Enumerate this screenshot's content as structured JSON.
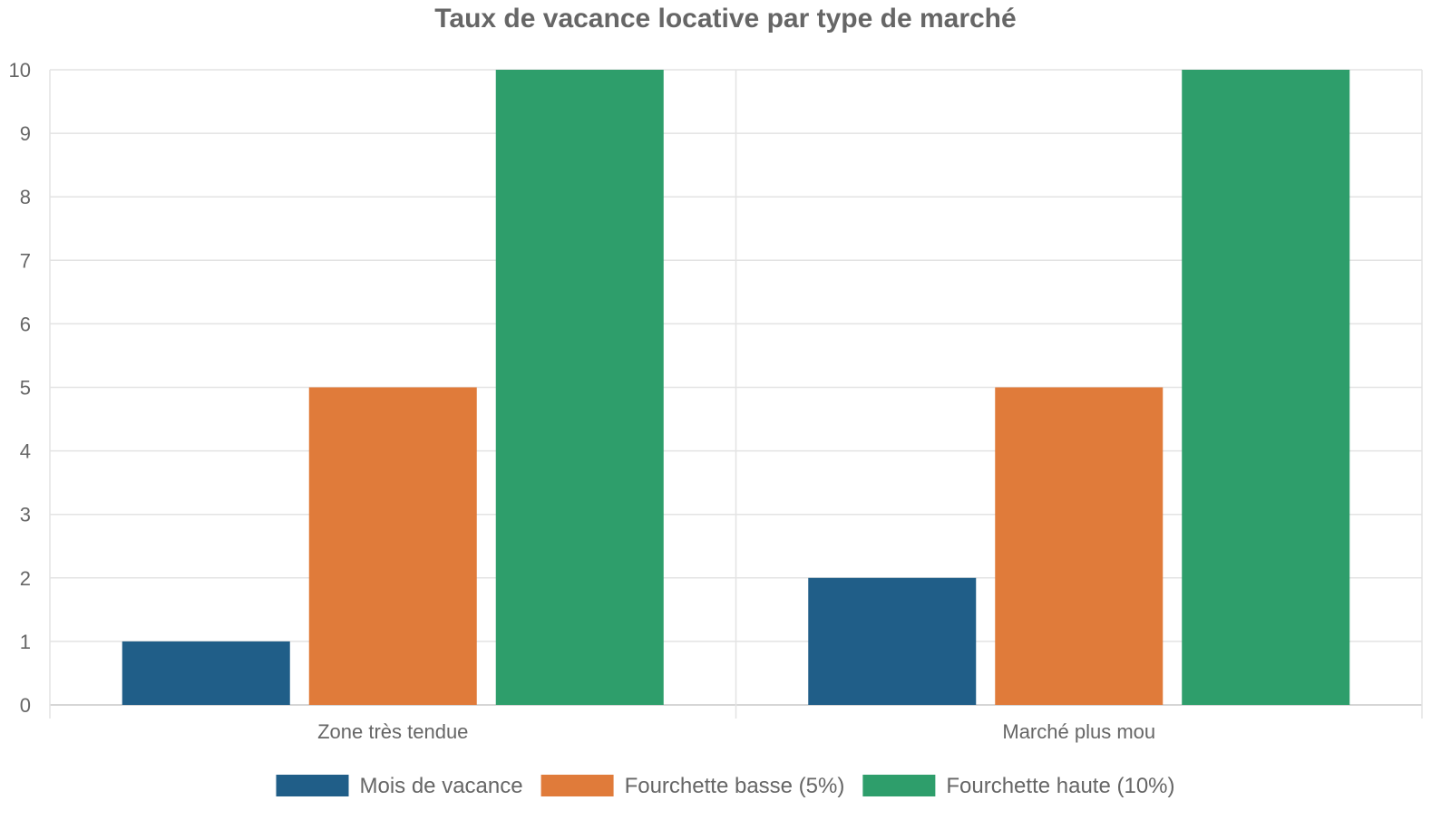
{
  "chart_data": {
    "type": "bar",
    "title": "Taux de vacance locative par type de marché",
    "xlabel": "",
    "ylabel": "",
    "categories": [
      "Zone très tendue",
      "Marché plus mou"
    ],
    "series": [
      {
        "name": "Mois de vacance",
        "values": [
          1,
          2
        ],
        "color": "#205e88"
      },
      {
        "name": "Fourchette basse (5%)",
        "values": [
          5,
          5
        ],
        "color": "#e07b3a"
      },
      {
        "name": "Fourchette haute (10%)",
        "values": [
          10,
          10
        ],
        "color": "#2e9e6b"
      }
    ],
    "ylim": [
      0,
      10
    ],
    "yticks": [
      0,
      1,
      2,
      3,
      4,
      5,
      6,
      7,
      8,
      9,
      10
    ],
    "grid": true,
    "legend_position": "bottom-center"
  }
}
